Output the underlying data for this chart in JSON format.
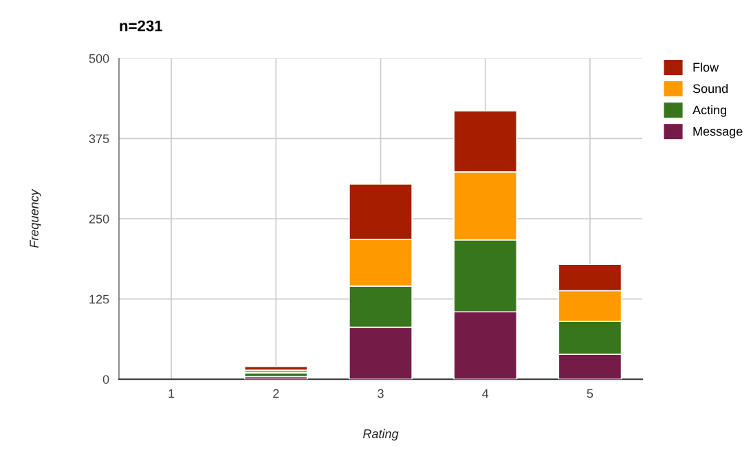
{
  "chart_data": {
    "type": "bar",
    "title": "n=231",
    "xlabel": "Rating",
    "ylabel": "Frequency",
    "categories": [
      "1",
      "2",
      "3",
      "4",
      "5"
    ],
    "stacked": true,
    "series": [
      {
        "name": "Message",
        "color": "#741b47",
        "values": [
          0,
          4,
          81,
          105,
          39
        ]
      },
      {
        "name": "Acting",
        "color": "#38761d",
        "values": [
          0,
          6,
          64,
          112,
          51
        ]
      },
      {
        "name": "Sound",
        "color": "#ff9900",
        "values": [
          0,
          4,
          73,
          106,
          48
        ]
      },
      {
        "name": "Flow",
        "color": "#a61d00",
        "values": [
          0,
          6,
          86,
          95,
          41
        ]
      }
    ],
    "ylim": [
      0,
      500
    ],
    "yticks": [
      0,
      125,
      250,
      375,
      500
    ],
    "grid": true,
    "legend": "top right"
  }
}
